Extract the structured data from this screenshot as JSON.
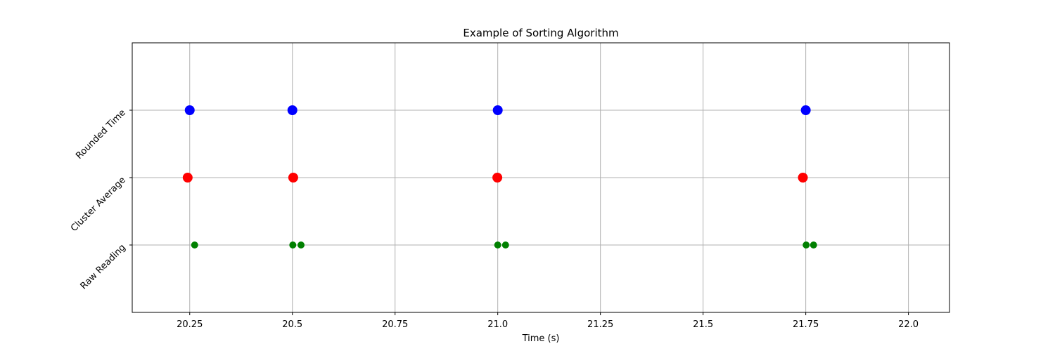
{
  "chart_data": {
    "type": "scatter",
    "title": "Example of Sorting Algorithm",
    "xlabel": "Time (s)",
    "ylabel": "",
    "xlim": [
      20.11,
      22.1
    ],
    "ylim": [
      -1,
      3
    ],
    "grid": true,
    "xticks": [
      {
        "value": 20.25,
        "label": "20.25"
      },
      {
        "value": 20.5,
        "label": "20.5"
      },
      {
        "value": 20.75,
        "label": "20.75"
      },
      {
        "value": 21.0,
        "label": "21.0"
      },
      {
        "value": 21.25,
        "label": "21.25"
      },
      {
        "value": 21.5,
        "label": "21.5"
      },
      {
        "value": 21.75,
        "label": "21.75"
      },
      {
        "value": 22.0,
        "label": "22.0"
      }
    ],
    "yticks": [
      {
        "value": 0,
        "label": "Raw Reading"
      },
      {
        "value": 1,
        "label": "Cluster Average"
      },
      {
        "value": 2,
        "label": "Rounded Time"
      }
    ],
    "series": [
      {
        "color": "#008000",
        "marker": "small",
        "points": [
          {
            "x": 20.262,
            "y": 0
          },
          {
            "x": 20.501,
            "y": 0
          },
          {
            "x": 20.521,
            "y": 0
          },
          {
            "x": 21.0,
            "y": 0
          },
          {
            "x": 21.019,
            "y": 0
          },
          {
            "x": 21.751,
            "y": 0
          },
          {
            "x": 21.769,
            "y": 0
          }
        ]
      },
      {
        "color": "#ff0000",
        "marker": "large",
        "points": [
          {
            "x": 20.245,
            "y": 1
          },
          {
            "x": 20.502,
            "y": 1
          },
          {
            "x": 20.999,
            "y": 1
          },
          {
            "x": 21.743,
            "y": 1
          }
        ]
      },
      {
        "color": "#0000ff",
        "marker": "large",
        "points": [
          {
            "x": 20.25,
            "y": 2
          },
          {
            "x": 20.5,
            "y": 2
          },
          {
            "x": 21.0,
            "y": 2
          },
          {
            "x": 21.75,
            "y": 2
          }
        ]
      }
    ]
  }
}
